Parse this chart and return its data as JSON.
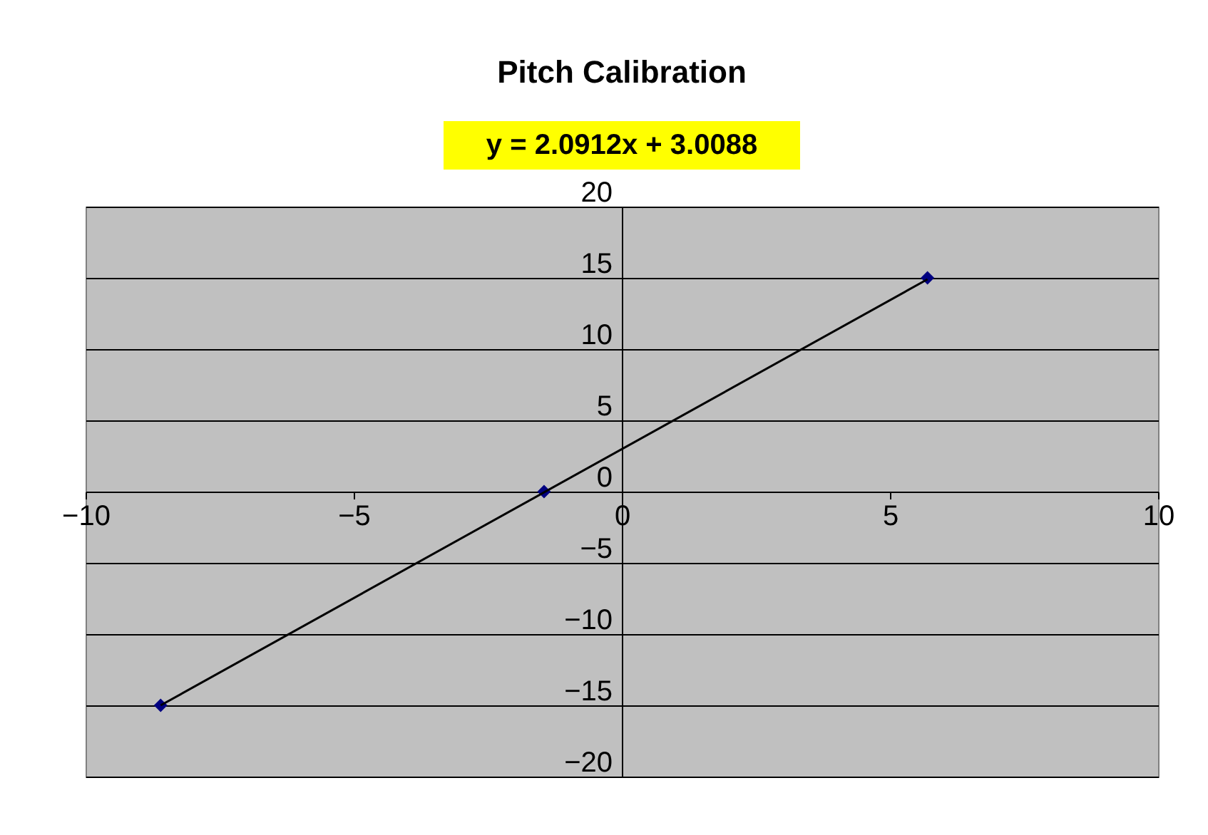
{
  "chart_data": {
    "type": "scatter",
    "title": "Pitch Calibration",
    "annotations": [
      "y = 2.0912x + 3.0088"
    ],
    "series": [
      {
        "color": "#000080",
        "marker": "diamond",
        "x": [
          -8.6,
          -1.45,
          5.7
        ],
        "values": [
          -15,
          0,
          15
        ]
      },
      {
        "type": "line",
        "color": "#000000",
        "x": [
          -8.6,
          5.7
        ],
        "values": [
          -15,
          14.9
        ]
      }
    ],
    "xlim": [
      -10,
      10
    ],
    "xticks": [
      -10,
      -5,
      0,
      5,
      10
    ],
    "ylim": [
      -20,
      20
    ],
    "yticks": [
      -20,
      -15,
      -10,
      -5,
      0,
      5,
      10,
      15,
      20
    ],
    "grid": "y"
  }
}
